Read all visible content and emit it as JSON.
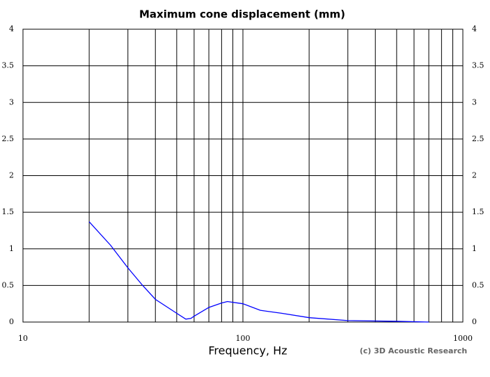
{
  "chart_data": {
    "type": "line",
    "title": "Maximum cone displacement (mm)",
    "x_label": "Frequency, Hz",
    "annotation": "(c) 3D Acoustic Research",
    "log_x": true,
    "grid": true,
    "xlim": [
      10,
      1000
    ],
    "xticks": [
      10,
      100,
      1000
    ],
    "xgrid": [
      20,
      30,
      40,
      50,
      60,
      70,
      80,
      90,
      100,
      200,
      300,
      400,
      500,
      600,
      700,
      800,
      900
    ],
    "ylim": [
      0,
      4
    ],
    "yticks": [
      0,
      0.5,
      1,
      1.5,
      2,
      2.5,
      3,
      3.5,
      4
    ],
    "series": [
      {
        "color": "#0000ff",
        "x": [
          20,
          25,
          30,
          35,
          40,
          50,
          55,
          58,
          60,
          70,
          80,
          85,
          100,
          120,
          150,
          200,
          300,
          500,
          700
        ],
        "values": [
          1.37,
          1.05,
          0.74,
          0.5,
          0.31,
          0.12,
          0.04,
          0.05,
          0.08,
          0.2,
          0.26,
          0.28,
          0.25,
          0.16,
          0.12,
          0.06,
          0.02,
          0.01,
          0
        ]
      }
    ]
  }
}
